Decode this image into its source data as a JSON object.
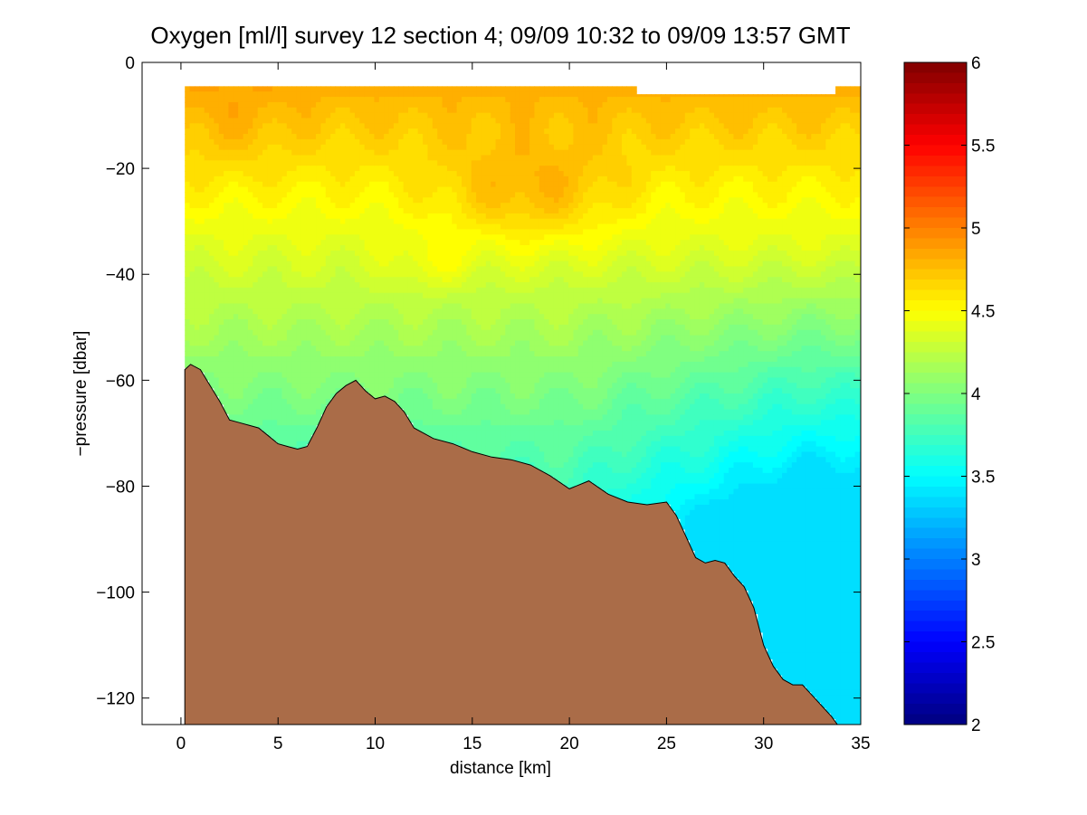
{
  "chart_data": {
    "type": "heatmap",
    "title": "Oxygen [ml/l] survey 12 section 4; 09/09 10:32 to 09/09 13:57 GMT",
    "xlabel": "distance [km]",
    "ylabel": "−pressure [dbar]",
    "xlim": [
      -2,
      35
    ],
    "ylim": [
      -125,
      0
    ],
    "xticks": [
      0,
      5,
      10,
      15,
      20,
      25,
      30,
      35
    ],
    "yticks": [
      0,
      -20,
      -40,
      -60,
      -80,
      -100,
      -120
    ],
    "xtick_labels": [
      "0",
      "5",
      "10",
      "15",
      "20",
      "25",
      "30",
      "35"
    ],
    "ytick_labels": [
      "0",
      "−20",
      "−40",
      "−60",
      "−80",
      "−100",
      "−120"
    ],
    "colorbar": {
      "min": 2,
      "max": 6,
      "ticks": [
        2,
        2.5,
        3,
        3.5,
        4,
        4.5,
        5,
        5.5,
        6
      ],
      "tick_labels": [
        "2",
        "2.5",
        "3",
        "3.5",
        "4",
        "4.5",
        "5",
        "5.5",
        "6"
      ],
      "colormap": "jet"
    },
    "data_top_pressure": -4.5,
    "bottom_profile": {
      "x": [
        0.2,
        0.5,
        1.0,
        1.5,
        2.0,
        2.5,
        3.0,
        3.5,
        4.0,
        4.5,
        5.0,
        5.5,
        6.0,
        6.5,
        7.0,
        7.5,
        8.0,
        8.5,
        9.0,
        9.5,
        10.0,
        10.5,
        11.0,
        11.5,
        12.0,
        13.0,
        14.0,
        15.0,
        16.0,
        17.0,
        18.0,
        19.0,
        20.0,
        21.0,
        22.0,
        23.0,
        24.0,
        25.0,
        25.5,
        26.0,
        26.5,
        27.0,
        27.5,
        28.0,
        28.5,
        29.0,
        29.5,
        30.0,
        30.5,
        31.0,
        31.5,
        32.0,
        32.5,
        33.0,
        33.5,
        33.8
      ],
      "y": [
        -58,
        -57,
        -58,
        -61,
        -64,
        -67.5,
        -68,
        -68.5,
        -69,
        -70.5,
        -72,
        -72.5,
        -73,
        -72.5,
        -69,
        -65,
        -62.5,
        -61,
        -60,
        -62,
        -63.5,
        -63,
        -64,
        -66,
        -69,
        -71,
        -72,
        -73.5,
        -74.5,
        -75,
        -76,
        -78,
        -80.5,
        -79,
        -81.5,
        -83,
        -83.5,
        -83,
        -85.5,
        -89.5,
        -93.5,
        -94.5,
        -94,
        -94.5,
        -97,
        -99,
        -103,
        -110,
        -114,
        -116.5,
        -117.5,
        -117.5,
        -119.5,
        -121.5,
        -123.5,
        -125
      ],
      "color": "#AA6C48"
    },
    "blank_areas": [
      {
        "description_note": "",
        "x": [
          23.3,
          33.5
        ],
        "y": [
          -4.5,
          -6
        ]
      }
    ],
    "oxygen_field_summary": {
      "surface_layer_0_to_25_dbar": [
        4.6,
        5.05
      ],
      "core_max_near_18km_25dbar": 5.05,
      "mid_layer_30_to_50_dbar": [
        4.3,
        4.5
      ],
      "deep_east_below_80_dbar": [
        3.4,
        3.6
      ],
      "min_value_approx": 3.35
    }
  }
}
